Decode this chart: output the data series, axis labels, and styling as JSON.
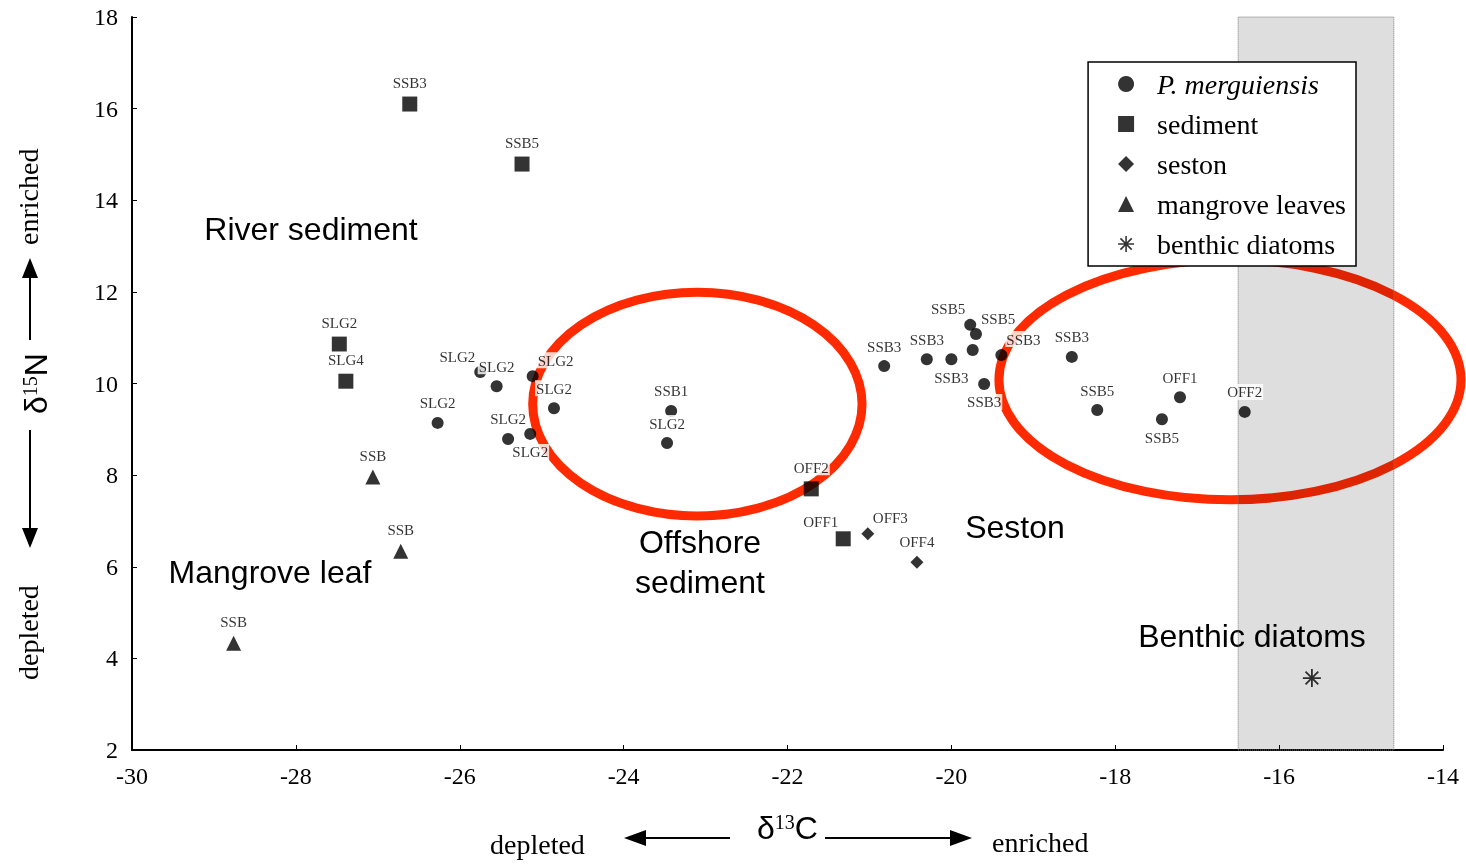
{
  "chart_data": {
    "type": "scatter",
    "xlabel": "δ$^{13}$C",
    "ylabel": "δ$^{15}$N",
    "xlim": [
      -30,
      -14
    ],
    "xticks": [
      -30,
      -28,
      -26,
      -24,
      -22,
      -20,
      -18,
      -16,
      -14
    ],
    "ylim": [
      2,
      18
    ],
    "yticks": [
      2,
      4,
      6,
      8,
      10,
      12,
      14,
      16,
      18
    ],
    "grid": false,
    "legend": "top right",
    "series": [
      {
        "name": "P. merguiensis",
        "color": "#000000",
        "marker": "circle",
        "x": [
          -26.27,
          -25.75,
          -25.55,
          -25.11,
          -24.85,
          -25.41,
          -25.14,
          -23.42,
          -23.47,
          -20.82,
          -20.3,
          -20.0,
          -19.77,
          -19.7,
          -19.74,
          -19.39,
          -19.6,
          -18.53,
          -18.22,
          -17.43,
          -17.21,
          -16.42
        ],
        "values": [
          9.14,
          10.25,
          9.94,
          10.16,
          9.46,
          8.79,
          8.9,
          9.4,
          8.7,
          10.38,
          10.53,
          10.53,
          11.28,
          11.08,
          10.73,
          10.62,
          9.99,
          10.58,
          9.42,
          9.22,
          9.7,
          9.38
        ],
        "value_labels": [
          "SLG2",
          "SLG2",
          "SLG2",
          "SLG2",
          "SLG2",
          "SLG2",
          "SLG2",
          "SSB1",
          "SLG2",
          "SSB3",
          "SSB3",
          "SSB3",
          "SSB5",
          "SSB5",
          null,
          "SSB3",
          "SSB3",
          "SSB3",
          "SSB5",
          "SSB5",
          "OFF1",
          "OFF2"
        ]
      },
      {
        "name": "sediment",
        "color": "#000000",
        "marker": "square",
        "x": [
          -26.61,
          -25.24,
          -27.47,
          -27.39,
          -21.71,
          -21.32
        ],
        "values": [
          16.1,
          14.79,
          10.86,
          10.05,
          7.7,
          6.61
        ],
        "value_labels": [
          "SSB3",
          "SSB5",
          "SLG2",
          "SLG4",
          "OFF2",
          "OFF1"
        ]
      },
      {
        "name": "seston",
        "color": "#000000",
        "marker": "diamond",
        "x": [
          -21.02,
          -20.42
        ],
        "values": [
          6.72,
          6.1
        ],
        "value_labels": [
          "OFF3",
          "OFF4"
        ]
      },
      {
        "name": "mangrove leaves",
        "color": "#000000",
        "marker": "triangle",
        "x": [
          -27.06,
          -26.72,
          -28.76
        ],
        "values": [
          7.96,
          6.34,
          4.33
        ],
        "value_labels": [
          "SSB",
          "SSB",
          "SSB"
        ]
      },
      {
        "name": "benthic diatoms",
        "color": "#000000",
        "marker": "star",
        "x": [
          -15.6
        ],
        "values": [
          3.57
        ]
      }
    ],
    "bands": [
      {
        "axis": "x",
        "from": -16.5,
        "to": -14.6
      }
    ],
    "annotations": [
      "depleted",
      "enriched",
      "depleted",
      "enriched",
      "River sediment",
      "Mangrove leaf",
      "Offshore\nsediment",
      "Seston",
      "Benthic diatoms"
    ]
  }
}
